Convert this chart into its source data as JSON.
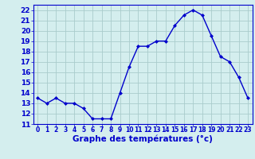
{
  "hours": [
    0,
    1,
    2,
    3,
    4,
    5,
    6,
    7,
    8,
    9,
    10,
    11,
    12,
    13,
    14,
    15,
    16,
    17,
    18,
    19,
    20,
    21,
    22,
    23
  ],
  "temps": [
    13.5,
    13.0,
    13.5,
    13.0,
    13.0,
    12.5,
    11.5,
    11.5,
    11.5,
    14.0,
    16.5,
    18.5,
    18.5,
    19.0,
    19.0,
    20.5,
    21.5,
    22.0,
    21.5,
    19.5,
    17.5,
    17.0,
    15.5,
    13.5
  ],
  "xlabel": "Graphe des températures (°c)",
  "xlim": [
    -0.5,
    23.5
  ],
  "ylim": [
    11,
    22.5
  ],
  "yticks": [
    11,
    12,
    13,
    14,
    15,
    16,
    17,
    18,
    19,
    20,
    21,
    22
  ],
  "xticks": [
    0,
    1,
    2,
    3,
    4,
    5,
    6,
    7,
    8,
    9,
    10,
    11,
    12,
    13,
    14,
    15,
    16,
    17,
    18,
    19,
    20,
    21,
    22,
    23
  ],
  "line_color": "#0000cc",
  "marker": "D",
  "marker_size": 2.0,
  "bg_color": "#d4eeee",
  "grid_color": "#aacccc",
  "label_color": "#0000cc",
  "tick_color": "#0000cc",
  "xlabel_fontsize": 7.5,
  "ytick_fontsize": 6.5,
  "xtick_fontsize": 5.5,
  "linewidth": 1.0
}
